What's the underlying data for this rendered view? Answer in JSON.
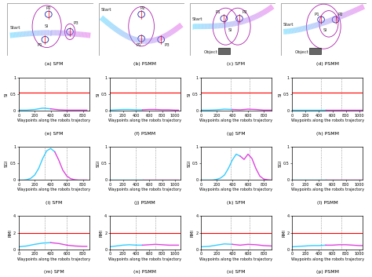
{
  "diagrams": [
    {
      "caption": "(a) SFM",
      "labels": [
        "Start",
        "P2",
        "P1",
        "P3",
        "SI"
      ]
    },
    {
      "caption": "(b) PSMM",
      "labels": [
        "Start",
        "P2",
        "P1",
        "P3"
      ]
    },
    {
      "caption": "(c) SFM",
      "labels": [
        "Start",
        "P1",
        "P2",
        "SI",
        "Object"
      ]
    },
    {
      "caption": "(d) PSMM",
      "labels": [
        "Start",
        "P1",
        "P2",
        "SI",
        "Object"
      ]
    }
  ],
  "chart_data": [
    {
      "type": "line",
      "caption": "(e) SFM",
      "xlabel": "Waypoints along the robots trajectory",
      "ylabel": "SI",
      "x": [
        0,
        100,
        200,
        300,
        400,
        500,
        600,
        700,
        800,
        850
      ],
      "series": [
        {
          "color": "#33ccff",
          "values": [
            0.02,
            0.02,
            0.04,
            0.08,
            0.06,
            null,
            null,
            null,
            null,
            null
          ]
        },
        {
          "color": "#dd44dd",
          "values": [
            null,
            null,
            null,
            null,
            0.06,
            0.03,
            0.02,
            0.02,
            0.02,
            0.02
          ]
        }
      ],
      "threshold": 0.55,
      "events": [
        330,
        600
      ],
      "xlim": [
        0,
        880
      ],
      "ylim": [
        0,
        1
      ],
      "xticks": [
        0,
        200,
        400,
        600,
        800
      ],
      "yticks": [
        0,
        0.5,
        1
      ]
    },
    {
      "type": "line",
      "caption": "(f) PSMM",
      "xlabel": "Waypoints along the robots trajectory",
      "ylabel": "SI",
      "x": [
        0,
        100,
        200,
        300,
        400,
        500,
        600,
        700,
        800,
        900,
        1000,
        1050
      ],
      "series": [
        {
          "color": "#33ccff",
          "values": [
            0.02,
            0.03,
            0.04,
            0.04,
            0.03,
            0.03,
            null,
            null,
            null,
            null,
            null,
            null
          ]
        },
        {
          "color": "#dd44dd",
          "values": [
            null,
            null,
            null,
            null,
            null,
            0.03,
            0.04,
            0.04,
            0.03,
            0.03,
            0.02,
            0.02
          ]
        }
      ],
      "threshold": 0.55,
      "events": [
        400,
        700
      ],
      "xlim": [
        0,
        1080
      ],
      "ylim": [
        0,
        1
      ],
      "xticks": [
        0,
        200,
        400,
        600,
        800,
        1000
      ],
      "yticks": [
        0,
        0.5,
        1
      ]
    },
    {
      "type": "line",
      "caption": "(g) SFM",
      "xlabel": "Waypoints along the robots trajectory",
      "ylabel": "SI",
      "x": [
        0,
        100,
        200,
        300,
        400,
        500,
        600,
        700,
        800,
        900
      ],
      "series": [
        {
          "color": "#33ccff",
          "values": [
            0.02,
            0.02,
            0.03,
            0.05,
            0.04,
            null,
            null,
            null,
            null,
            null
          ]
        },
        {
          "color": "#dd44dd",
          "values": [
            null,
            null,
            null,
            null,
            0.04,
            0.03,
            0.05,
            0.04,
            0.02,
            0.02
          ]
        }
      ],
      "threshold": 0.55,
      "events": [
        380,
        620
      ],
      "xlim": [
        0,
        900
      ],
      "ylim": [
        0,
        1
      ],
      "xticks": [
        0,
        200,
        400,
        600,
        800
      ],
      "yticks": [
        0,
        0.5,
        1
      ]
    },
    {
      "type": "line",
      "caption": "(h) PSMM",
      "xlabel": "Waypoints along the robots trajectory",
      "ylabel": "SI",
      "x": [
        0,
        100,
        200,
        300,
        400,
        500,
        600,
        700,
        800,
        900,
        1000,
        1050
      ],
      "series": [
        {
          "color": "#33ccff",
          "values": [
            0.02,
            0.02,
            0.02,
            0.02,
            0.02,
            0.02,
            null,
            null,
            null,
            null,
            null,
            null
          ]
        },
        {
          "color": "#dd44dd",
          "values": [
            null,
            null,
            null,
            null,
            null,
            0.02,
            0.02,
            0.02,
            0.02,
            0.02,
            0.02,
            0.02
          ]
        }
      ],
      "threshold": 0.55,
      "events": [
        430,
        730
      ],
      "xlim": [
        0,
        1050
      ],
      "ylim": [
        0,
        1
      ],
      "xticks": [
        0,
        200,
        400,
        600,
        800,
        1000
      ],
      "yticks": [
        0,
        0.5,
        1
      ]
    },
    {
      "type": "line",
      "caption": "(i) SFM",
      "xlabel": "Waypoints along the robots trajectory",
      "ylabel": "SGI",
      "x": [
        0,
        50,
        100,
        150,
        200,
        250,
        300,
        350,
        400,
        450,
        500,
        550,
        600,
        650,
        700,
        750,
        800,
        850
      ],
      "series": [
        {
          "color": "#33ccff",
          "values": [
            0,
            0,
            0.01,
            0.05,
            0.15,
            0.35,
            0.65,
            0.88,
            0.95,
            0.85,
            null,
            null,
            null,
            null,
            null,
            null,
            null,
            null
          ]
        },
        {
          "color": "#dd44dd",
          "values": [
            null,
            null,
            null,
            null,
            null,
            null,
            null,
            null,
            null,
            0.85,
            0.6,
            0.3,
            0.12,
            0.04,
            0.01,
            0,
            0,
            0
          ]
        }
      ],
      "events": [
        330,
        600
      ],
      "xlim": [
        0,
        880
      ],
      "ylim": [
        0,
        1
      ],
      "xticks": [
        0,
        200,
        400,
        600,
        800
      ],
      "yticks": [
        0,
        0.5,
        1
      ]
    },
    {
      "type": "line",
      "caption": "(j) PSMM",
      "xlabel": "Waypoints along the robots trajectory",
      "ylabel": "SGI",
      "x": [
        0,
        100,
        200,
        300,
        400,
        500,
        600,
        700,
        800,
        900,
        1000,
        1050
      ],
      "series": [
        {
          "color": "#33ccff",
          "values": [
            0.01,
            0.01,
            0.01,
            0.01,
            0.01,
            0.01,
            null,
            null,
            null,
            null,
            null,
            null
          ]
        },
        {
          "color": "#dd44dd",
          "values": [
            null,
            null,
            null,
            null,
            null,
            0.01,
            0.01,
            0.01,
            0.01,
            0.01,
            0.01,
            0.01
          ]
        }
      ],
      "events": [
        400,
        700
      ],
      "xlim": [
        0,
        1080
      ],
      "ylim": [
        0,
        1
      ],
      "xticks": [
        0,
        200,
        400,
        600,
        800,
        1000
      ],
      "yticks": [
        0,
        0.5,
        1
      ]
    },
    {
      "type": "line",
      "caption": "(k) SFM",
      "xlabel": "Waypoints along the robots trajectory",
      "ylabel": "SGI",
      "x": [
        0,
        50,
        100,
        150,
        200,
        250,
        300,
        350,
        400,
        450,
        500,
        550,
        600,
        650,
        700,
        750,
        800,
        850,
        900
      ],
      "series": [
        {
          "color": "#33ccff",
          "values": [
            0,
            0,
            0,
            0,
            0.02,
            0.06,
            0.15,
            0.35,
            0.6,
            0.78,
            0.72,
            null,
            null,
            null,
            null,
            null,
            null,
            null,
            null
          ]
        },
        {
          "color": "#dd44dd",
          "values": [
            null,
            null,
            null,
            null,
            null,
            null,
            null,
            null,
            null,
            null,
            0.72,
            0.62,
            0.78,
            0.65,
            0.35,
            0.12,
            0.03,
            0.01,
            0
          ]
        }
      ],
      "events": [
        380,
        620
      ],
      "xlim": [
        0,
        900
      ],
      "ylim": [
        0,
        1
      ],
      "xticks": [
        0,
        200,
        400,
        600,
        800
      ],
      "yticks": [
        0,
        0.5,
        1
      ]
    },
    {
      "type": "line",
      "caption": "(l) PSMM",
      "xlabel": "Waypoints along the robots trajectory",
      "ylabel": "SGI",
      "x": [
        0,
        100,
        200,
        300,
        400,
        500,
        600,
        700,
        800,
        900,
        1000,
        1050
      ],
      "series": [
        {
          "color": "#33ccff",
          "values": [
            0.01,
            0.01,
            0.01,
            0.01,
            0.01,
            0.01,
            null,
            null,
            null,
            null,
            null,
            null
          ]
        },
        {
          "color": "#dd44dd",
          "values": [
            null,
            null,
            null,
            null,
            null,
            0.01,
            0.01,
            0.01,
            0.01,
            0.01,
            0.01,
            0.01
          ]
        }
      ],
      "events": [
        430,
        730
      ],
      "xlim": [
        0,
        1050
      ],
      "ylim": [
        0,
        1
      ],
      "xticks": [
        0,
        200,
        400,
        600,
        800,
        1000
      ],
      "yticks": [
        0,
        0.5,
        1
      ]
    },
    {
      "type": "line",
      "caption": "(m) SFM",
      "xlabel": "Waypoints along the robots trajectory",
      "ylabel": "RMI",
      "x": [
        0,
        100,
        200,
        300,
        400,
        500,
        600,
        700,
        800,
        850
      ],
      "series": [
        {
          "color": "#33ccff",
          "values": [
            0.3,
            0.4,
            0.6,
            0.75,
            0.8,
            null,
            null,
            null,
            null,
            null
          ]
        },
        {
          "color": "#dd44dd",
          "values": [
            null,
            null,
            null,
            null,
            0.8,
            0.7,
            0.5,
            0.4,
            0.35,
            0.35
          ]
        }
      ],
      "threshold": 2,
      "events": [
        330,
        600
      ],
      "xlim": [
        0,
        880
      ],
      "ylim": [
        0,
        4
      ],
      "xticks": [
        0,
        200,
        400,
        600,
        800
      ],
      "yticks": [
        0,
        2,
        4
      ]
    },
    {
      "type": "line",
      "caption": "(n) PSMM",
      "xlabel": "Waypoints along the robots trajectory",
      "ylabel": "RMI",
      "x": [
        0,
        100,
        200,
        300,
        400,
        500,
        600,
        700,
        800,
        900,
        1000,
        1050
      ],
      "series": [
        {
          "color": "#33ccff",
          "values": [
            0.3,
            0.4,
            0.5,
            0.55,
            0.5,
            0.5,
            null,
            null,
            null,
            null,
            null,
            null
          ]
        },
        {
          "color": "#dd44dd",
          "values": [
            null,
            null,
            null,
            null,
            null,
            0.5,
            0.55,
            0.6,
            0.55,
            0.5,
            0.5,
            0.5
          ]
        }
      ],
      "threshold": 2,
      "events": [
        400,
        700
      ],
      "xlim": [
        0,
        1080
      ],
      "ylim": [
        0,
        4
      ],
      "xticks": [
        0,
        200,
        400,
        600,
        800,
        1000
      ],
      "yticks": [
        0,
        2,
        4
      ]
    },
    {
      "type": "line",
      "caption": "(o) SFM",
      "xlabel": "Waypoints along the robots trajectory",
      "ylabel": "RMI",
      "x": [
        0,
        100,
        200,
        300,
        400,
        500,
        600,
        700,
        800,
        900
      ],
      "series": [
        {
          "color": "#33ccff",
          "values": [
            0.3,
            0.35,
            0.5,
            0.65,
            0.6,
            null,
            null,
            null,
            null,
            null
          ]
        },
        {
          "color": "#dd44dd",
          "values": [
            null,
            null,
            null,
            null,
            0.6,
            0.5,
            0.6,
            0.55,
            0.45,
            0.4
          ]
        }
      ],
      "threshold": 2,
      "events": [
        380,
        620
      ],
      "xlim": [
        0,
        900
      ],
      "ylim": [
        0,
        4
      ],
      "xticks": [
        0,
        200,
        400,
        600,
        800
      ],
      "yticks": [
        0,
        2,
        4
      ]
    },
    {
      "type": "line",
      "caption": "(p) PSMM",
      "xlabel": "Waypoints along the robots trajectory",
      "ylabel": "RMI",
      "x": [
        0,
        100,
        200,
        300,
        400,
        500,
        600,
        700,
        800,
        900,
        1000,
        1050
      ],
      "series": [
        {
          "color": "#33ccff",
          "values": [
            0.3,
            0.35,
            0.4,
            0.45,
            0.45,
            0.5,
            null,
            null,
            null,
            null,
            null,
            null
          ]
        },
        {
          "color": "#dd44dd",
          "values": [
            null,
            null,
            null,
            null,
            null,
            0.5,
            0.5,
            0.55,
            0.55,
            0.5,
            0.45,
            0.45
          ]
        }
      ],
      "threshold": 2,
      "events": [
        430,
        730
      ],
      "xlim": [
        0,
        1050
      ],
      "ylim": [
        0,
        4
      ],
      "xticks": [
        0,
        200,
        400,
        600,
        800,
        1000
      ],
      "yticks": [
        0,
        2,
        4
      ]
    }
  ]
}
